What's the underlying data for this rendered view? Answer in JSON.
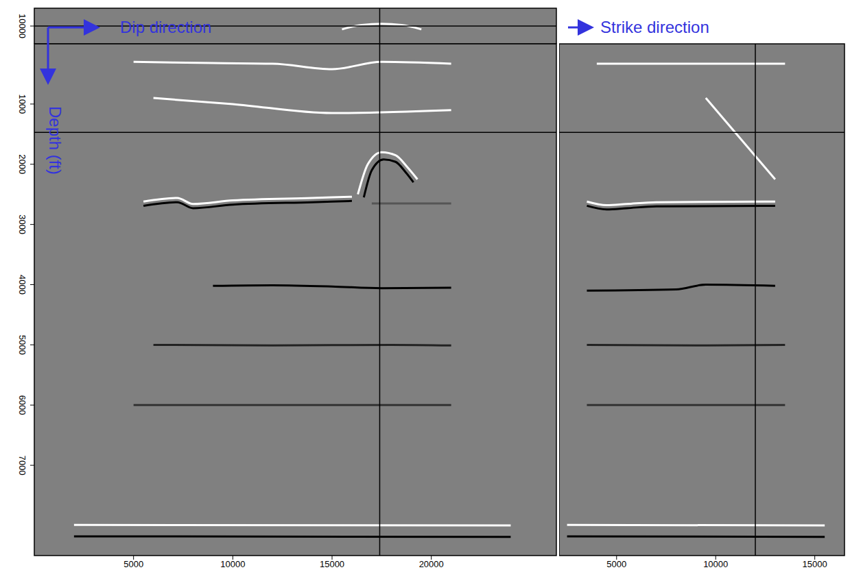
{
  "chart_data": [
    {
      "type": "line",
      "xlim": [
        0,
        26300
      ],
      "ylim": [
        9200,
        10800
      ],
      "yticks": [
        10000
      ],
      "tick_labels": "y",
      "crosshair": {
        "x": 17400,
        "y": 10000
      },
      "series": [
        {
          "color": "#ffffff",
          "x": [
            15500,
            16500,
            17500,
            18500,
            19500
          ],
          "values": [
            10150,
            9950,
            9900,
            9950,
            10150
          ]
        }
      ]
    },
    {
      "type": "line",
      "x_label": "Dip direction",
      "y_label": "Depth (ft)",
      "xlim": [
        0,
        26300
      ],
      "ylim": [
        0,
        8500
      ],
      "xticks": [
        5000,
        10000,
        15000,
        20000
      ],
      "yticks": [
        1000,
        2000,
        3000,
        4000,
        5000,
        6000,
        7000
      ],
      "crosshair": {
        "x": 17400,
        "y": 1470
      },
      "series": [
        {
          "color": "#ffffff",
          "x": [
            5000,
            7000,
            9000,
            12000,
            15000,
            17500,
            21000
          ],
          "values": [
            300,
            310,
            320,
            330,
            420,
            300,
            330
          ]
        },
        {
          "color": "#ffffff",
          "x": [
            6000,
            10000,
            15000,
            21000
          ],
          "values": [
            900,
            1000,
            1150,
            1100
          ]
        },
        {
          "color": "#ffffff",
          "x": [
            5500,
            7200,
            8000,
            10000,
            14000,
            16000
          ],
          "values": [
            2620,
            2560,
            2660,
            2600,
            2560,
            2540
          ]
        },
        {
          "color": "#000000",
          "x": [
            5500,
            7200,
            8000,
            10000,
            14000,
            16000
          ],
          "values": [
            2690,
            2630,
            2730,
            2670,
            2630,
            2610
          ]
        },
        {
          "color": "#555555",
          "x": [
            17000,
            21000
          ],
          "values": [
            2650,
            2650
          ]
        },
        {
          "color": "#ffffff",
          "x": [
            16300,
            16800,
            17500,
            18200,
            18800,
            19300
          ],
          "values": [
            2500,
            2000,
            1800,
            1850,
            2050,
            2250
          ]
        },
        {
          "color": "#000000",
          "x": [
            16600,
            17000,
            17600,
            18200,
            18700,
            19100
          ],
          "values": [
            2550,
            2100,
            1920,
            1960,
            2130,
            2300
          ]
        },
        {
          "color": "#000000",
          "x": [
            9000,
            12000,
            15000,
            17500,
            21000
          ],
          "values": [
            4020,
            4010,
            4030,
            4060,
            4050
          ]
        },
        {
          "color": "#222222",
          "x": [
            6000,
            12000,
            18000,
            21000
          ],
          "values": [
            5000,
            5010,
            5000,
            5010
          ]
        },
        {
          "color": "#333333",
          "x": [
            5000,
            21000
          ],
          "values": [
            6000,
            6000
          ]
        },
        {
          "color": "#ffffff",
          "x": [
            2000,
            24000
          ],
          "values": [
            7990,
            8000
          ]
        },
        {
          "color": "#000000",
          "x": [
            2000,
            24000
          ],
          "values": [
            8180,
            8190
          ]
        }
      ]
    },
    {
      "type": "line",
      "x_label": "Strike direction",
      "xlim": [
        2100,
        16500
      ],
      "ylim": [
        0,
        8500
      ],
      "xticks": [
        5000,
        10000,
        15000
      ],
      "tick_labels": "x",
      "crosshair": {
        "x": 12000,
        "y": 1470
      },
      "series": [
        {
          "color": "#ffffff",
          "x": [
            4000,
            13500
          ],
          "values": [
            330,
            330
          ]
        },
        {
          "color": "#ffffff",
          "x": [
            9500,
            13000
          ],
          "values": [
            900,
            2250
          ]
        },
        {
          "color": "#ffffff",
          "x": [
            3500,
            4500,
            5500,
            7000,
            13000
          ],
          "values": [
            2620,
            2680,
            2660,
            2630,
            2620
          ]
        },
        {
          "color": "#000000",
          "x": [
            3500,
            4500,
            5500,
            7000,
            13000
          ],
          "values": [
            2690,
            2750,
            2730,
            2700,
            2690
          ]
        },
        {
          "color": "#000000",
          "x": [
            3500,
            8000,
            9500,
            13000
          ],
          "values": [
            4100,
            4080,
            4000,
            4020
          ]
        },
        {
          "color": "#222222",
          "x": [
            3500,
            9000,
            13500
          ],
          "values": [
            5000,
            5010,
            5000
          ]
        },
        {
          "color": "#333333",
          "x": [
            3500,
            13500
          ],
          "values": [
            6000,
            6000
          ]
        },
        {
          "color": "#ffffff",
          "x": [
            2500,
            15500
          ],
          "values": [
            7990,
            8000
          ]
        },
        {
          "color": "#000000",
          "x": [
            2500,
            15500
          ],
          "values": [
            8180,
            8190
          ]
        }
      ]
    }
  ]
}
